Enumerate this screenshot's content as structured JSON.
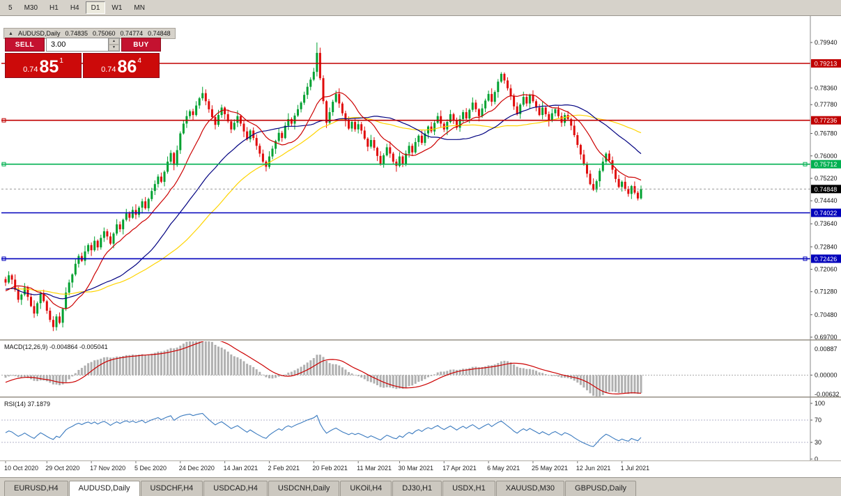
{
  "colors": {
    "chart_bg": "#ffffff",
    "panel_bg": "#d6d2ca",
    "up": "#00a131",
    "down": "#e00b0b",
    "trade_button": "#c41230",
    "trade_tile": "#cc0a0a",
    "current_badge": "#000000",
    "macd_hist": "#b0b0b0",
    "macd_signal": "#cc0000",
    "rsi_line": "#3a7abf",
    "axis_text": "#111111"
  },
  "toolbar": {
    "timeframes": [
      "5",
      "M30",
      "H1",
      "H4",
      "D1",
      "W1",
      "MN"
    ],
    "active": "D1"
  },
  "chart_header": {
    "collapse_glyph": "▲",
    "title": "AUDUSD,Daily",
    "open": "0.74835",
    "high": "0.75060",
    "low": "0.74774",
    "close": "0.74848"
  },
  "trade_panel": {
    "sell_label": "SELL",
    "buy_label": "BUY",
    "volume": "3.00",
    "spin_up": "▲",
    "spin_down": "▼",
    "sell_price": {
      "prefix": "0.74",
      "big": "85",
      "sup": "1"
    },
    "buy_price": {
      "prefix": "0.74",
      "big": "86",
      "sup": "4"
    }
  },
  "price_axis": {
    "ticks": [
      "0.79940",
      "0.78360",
      "0.77780",
      "0.76780",
      "0.76000",
      "0.75220",
      "0.74440",
      "0.73640",
      "0.72840",
      "0.72060",
      "0.71280",
      "0.70480",
      "0.69700"
    ],
    "current": {
      "value": 0.74848,
      "label": "0.74848"
    }
  },
  "levels": [
    {
      "price": 0.79213,
      "label": "0.79213",
      "color": "#c00000",
      "width": 1.6,
      "handles": "none"
    },
    {
      "price": 0.77236,
      "label": "0.77236",
      "color": "#c00000",
      "width": 1.6,
      "handles": "left"
    },
    {
      "price": 0.75712,
      "label": "0.75712",
      "color": "#00b050",
      "width": 1.6,
      "handles": "both"
    },
    {
      "price": 0.74022,
      "label": "0.74022",
      "color": "#0000bb",
      "width": 1.6,
      "handles": "none"
    },
    {
      "price": 0.72426,
      "label": "0.72426",
      "color": "#0000bb",
      "width": 1.6,
      "handles": "both"
    }
  ],
  "dates": {
    "labels": [
      "10 Oct 2020",
      "29 Oct 2020",
      "17 Nov 2020",
      "5 Dec 2020",
      "24 Dec 2020",
      "14 Jan 2021",
      "2 Feb 2021",
      "20 Feb 2021",
      "11 Mar 2021",
      "30 Mar 2021",
      "17 Apr 2021",
      "6 May 2021",
      "25 May 2021",
      "12 Jun 2021",
      "1 Jul 2021"
    ],
    "anchors": [
      0,
      13,
      27,
      41,
      55,
      69,
      83,
      97,
      111,
      124,
      138,
      152,
      166,
      180,
      194
    ]
  },
  "macd": {
    "label": "MACD(12,26,9)",
    "value": "-0.004864",
    "signal_value": "-0.005041",
    "fast": 12,
    "slow": 26,
    "signal": 9,
    "axis": {
      "max": 0.00887,
      "min": -0.00632,
      "max_label": "0.00887",
      "mid_label": "0.00000",
      "min_label": "-0.00632"
    }
  },
  "rsi": {
    "label": "RSI(14)",
    "value": "37.1879",
    "period": 14,
    "axis_labels": [
      "100",
      "70",
      "30",
      "0"
    ],
    "dashed_levels": [
      70,
      30
    ]
  },
  "chart_data": {
    "type": "candlestick",
    "symbol": "AUDUSD",
    "timeframe": "Daily",
    "title": "AUDUSD,Daily",
    "price_range": {
      "top": 0.7994,
      "bottom": 0.697
    },
    "pre_closes": [
      0.7312,
      0.7288,
      0.7252,
      0.7205,
      0.7162,
      0.7112,
      0.7065,
      0.7032,
      0.7068,
      0.7112,
      0.7148,
      0.7188,
      0.7162,
      0.7132,
      0.7102,
      0.7072,
      0.7042,
      0.7082,
      0.7118,
      0.7092,
      0.7062,
      0.7092,
      0.7128,
      0.7168,
      0.7142,
      0.7112,
      0.7138,
      0.7168,
      0.7148,
      0.7172
    ],
    "closes": [
      0.716,
      0.7185,
      0.717,
      0.7135,
      0.71,
      0.7118,
      0.7142,
      0.711,
      0.7078,
      0.7052,
      0.7088,
      0.712,
      0.7095,
      0.7062,
      0.703,
      0.7005,
      0.7042,
      0.702,
      0.7068,
      0.7125,
      0.716,
      0.7188,
      0.7225,
      0.7252,
      0.7235,
      0.7268,
      0.729,
      0.7272,
      0.7305,
      0.7282,
      0.7315,
      0.7338,
      0.732,
      0.7295,
      0.733,
      0.7362,
      0.7345,
      0.7378,
      0.74,
      0.7385,
      0.7412,
      0.7395,
      0.742,
      0.7442,
      0.7418,
      0.745,
      0.7478,
      0.7502,
      0.7528,
      0.751,
      0.7545,
      0.758,
      0.761,
      0.7568,
      0.762,
      0.7678,
      0.7712,
      0.7738,
      0.7755,
      0.7742,
      0.7775,
      0.78,
      0.7818,
      0.779,
      0.7762,
      0.7735,
      0.7708,
      0.7742,
      0.7768,
      0.7745,
      0.772,
      0.7692,
      0.7715,
      0.7738,
      0.7712,
      0.7685,
      0.7658,
      0.7688,
      0.7662,
      0.7635,
      0.7608,
      0.758,
      0.7562,
      0.7598,
      0.7625,
      0.7652,
      0.768,
      0.7662,
      0.7705,
      0.7728,
      0.7712,
      0.774,
      0.7762,
      0.7785,
      0.7812,
      0.784,
      0.7865,
      0.7892,
      0.7958,
      0.787,
      0.779,
      0.7715,
      0.7752,
      0.7788,
      0.7815,
      0.7782,
      0.7748,
      0.7722,
      0.7695,
      0.7718,
      0.7692,
      0.771,
      0.7688,
      0.766,
      0.7632,
      0.7655,
      0.7628,
      0.76,
      0.7572,
      0.7602,
      0.763,
      0.7608,
      0.758,
      0.7565,
      0.7598,
      0.7572,
      0.7608,
      0.7635,
      0.7612,
      0.7648,
      0.767,
      0.7645,
      0.7678,
      0.7702,
      0.7685,
      0.7715,
      0.7738,
      0.7712,
      0.7692,
      0.7718,
      0.7745,
      0.7722,
      0.7698,
      0.7728,
      0.7752,
      0.773,
      0.776,
      0.7785,
      0.7762,
      0.7738,
      0.7765,
      0.7792,
      0.7815,
      0.7788,
      0.7822,
      0.7858,
      0.7885,
      0.7862,
      0.7835,
      0.7808,
      0.7772,
      0.7745,
      0.7778,
      0.7805,
      0.7782,
      0.7812,
      0.779,
      0.7768,
      0.7742,
      0.7768,
      0.7745,
      0.7722,
      0.7748,
      0.7762,
      0.7738,
      0.7715,
      0.7742,
      0.7728,
      0.7705,
      0.7672,
      0.7638,
      0.7605,
      0.7572,
      0.7538,
      0.7502,
      0.7482,
      0.7512,
      0.7548,
      0.758,
      0.7608,
      0.7585,
      0.7552,
      0.752,
      0.7492,
      0.751,
      0.7485,
      0.7468,
      0.7495,
      0.7472,
      0.7452,
      0.74848
    ],
    "wick_hi": [
      8,
      14,
      5,
      18,
      10,
      4,
      16,
      7,
      12,
      20,
      6,
      9,
      15,
      5,
      11,
      13
    ],
    "wick_lo": [
      12,
      5,
      16,
      7,
      10,
      18,
      6,
      13,
      4,
      15,
      9,
      20,
      5,
      11,
      8,
      14
    ],
    "overrides": {
      "15": {
        "low": 0.6991
      },
      "62": {
        "high": 0.784
      },
      "98": {
        "high": 0.7994
      },
      "156": {
        "high": 0.7891
      },
      "185": {
        "low": 0.7478
      },
      "199": {
        "low": 0.7445
      }
    },
    "mas": [
      {
        "period": 13,
        "color": "#cc0000",
        "name": "ma-fast"
      },
      {
        "period": 34,
        "color": "#000080",
        "name": "ma-mid"
      },
      {
        "period": 55,
        "color": "#ffd400",
        "name": "ma-slow"
      }
    ]
  },
  "tabs": {
    "items": [
      {
        "label": "EURUSD,H4",
        "active": false
      },
      {
        "label": "AUDUSD,Daily",
        "active": true
      },
      {
        "label": "USDCHF,H4",
        "active": false
      },
      {
        "label": "USDCAD,H4",
        "active": false
      },
      {
        "label": "USDCNH,Daily",
        "active": false
      },
      {
        "label": "UKOil,H4",
        "active": false
      },
      {
        "label": "DJ30,H1",
        "active": false
      },
      {
        "label": "USDX,H1",
        "active": false
      },
      {
        "label": "XAUUSD,M30",
        "active": false
      },
      {
        "label": "GBPUSD,Daily",
        "active": false
      }
    ]
  }
}
